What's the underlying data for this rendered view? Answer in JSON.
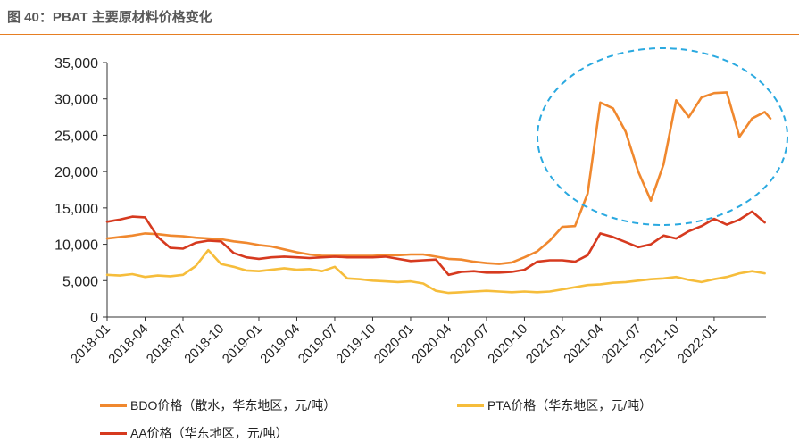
{
  "figure": {
    "title": "图 40：PBAT 主要原材料价格变化"
  },
  "colors": {
    "bdo": "#F0882E",
    "pta": "#F6BD3B",
    "aa": "#D63A1F",
    "axis": "#333333",
    "ellipse": "#2AA9E0",
    "rule": "#E67E22"
  },
  "chart_data": {
    "type": "line",
    "y_ticks": [
      "0",
      "5,000",
      "10,000",
      "15,000",
      "20,000",
      "25,000",
      "30,000",
      "35,000"
    ],
    "ylim": [
      0,
      35000
    ],
    "x_ticks": [
      "2018-01",
      "2018-04",
      "2018-07",
      "2018-10",
      "2019-01",
      "2019-04",
      "2019-07",
      "2019-10",
      "2020-01",
      "2020-04",
      "2020-07",
      "2020-10",
      "2021-01",
      "2021-04",
      "2021-07",
      "2021-10",
      "2022-01"
    ],
    "x_start": "2018-01",
    "x_end": "2022-04",
    "grid": false,
    "legend_position": "bottom",
    "series": [
      {
        "name": "BDO价格（散水，华东地区，元/吨）",
        "key": "bdo",
        "points": [
          [
            "2018-01",
            10800
          ],
          [
            "2018-02",
            11000
          ],
          [
            "2018-03",
            11200
          ],
          [
            "2018-04",
            11500
          ],
          [
            "2018-05",
            11400
          ],
          [
            "2018-06",
            11200
          ],
          [
            "2018-07",
            11100
          ],
          [
            "2018-08",
            10900
          ],
          [
            "2018-09",
            10800
          ],
          [
            "2018-10",
            10700
          ],
          [
            "2018-11",
            10400
          ],
          [
            "2018-12",
            10200
          ],
          [
            "2019-01",
            9900
          ],
          [
            "2019-02",
            9700
          ],
          [
            "2019-03",
            9300
          ],
          [
            "2019-04",
            8900
          ],
          [
            "2019-05",
            8600
          ],
          [
            "2019-06",
            8400
          ],
          [
            "2019-07",
            8400
          ],
          [
            "2019-08",
            8400
          ],
          [
            "2019-09",
            8400
          ],
          [
            "2019-10",
            8400
          ],
          [
            "2019-11",
            8500
          ],
          [
            "2019-12",
            8500
          ],
          [
            "2020-01",
            8600
          ],
          [
            "2020-02",
            8600
          ],
          [
            "2020-03",
            8300
          ],
          [
            "2020-04",
            8000
          ],
          [
            "2020-05",
            7900
          ],
          [
            "2020-06",
            7600
          ],
          [
            "2020-07",
            7400
          ],
          [
            "2020-08",
            7300
          ],
          [
            "2020-09",
            7500
          ],
          [
            "2020-10",
            8200
          ],
          [
            "2020-11",
            9000
          ],
          [
            "2020-12",
            10500
          ],
          [
            "2021-01",
            12400
          ],
          [
            "2021-02",
            12500
          ],
          [
            "2021-03",
            17000
          ],
          [
            "2021-04",
            29500
          ],
          [
            "2021-05",
            28700
          ],
          [
            "2021-06",
            25500
          ],
          [
            "2021-07",
            20000
          ],
          [
            "2021-08",
            16000
          ],
          [
            "2021-09",
            21000
          ],
          [
            "2021-10",
            29800
          ],
          [
            "2021-11",
            27500
          ],
          [
            "2021-12",
            30200
          ],
          [
            "2022-01",
            30800
          ],
          [
            "2022-02",
            30900
          ],
          [
            "2022-03",
            24800
          ],
          [
            "2022-04",
            27300
          ],
          [
            "2022-05",
            28200
          ],
          [
            "2022-05",
            27300
          ]
        ]
      },
      {
        "name": "PTA价格（华东地区，元/吨）",
        "key": "pta",
        "points": [
          [
            "2018-01",
            5800
          ],
          [
            "2018-02",
            5700
          ],
          [
            "2018-03",
            5900
          ],
          [
            "2018-04",
            5500
          ],
          [
            "2018-05",
            5700
          ],
          [
            "2018-06",
            5600
          ],
          [
            "2018-07",
            5800
          ],
          [
            "2018-08",
            7000
          ],
          [
            "2018-09",
            9200
          ],
          [
            "2018-10",
            7300
          ],
          [
            "2018-11",
            6900
          ],
          [
            "2018-12",
            6400
          ],
          [
            "2019-01",
            6300
          ],
          [
            "2019-02",
            6500
          ],
          [
            "2019-03",
            6700
          ],
          [
            "2019-04",
            6500
          ],
          [
            "2019-05",
            6600
          ],
          [
            "2019-06",
            6300
          ],
          [
            "2019-07",
            6900
          ],
          [
            "2019-08",
            5300
          ],
          [
            "2019-09",
            5200
          ],
          [
            "2019-10",
            5000
          ],
          [
            "2019-11",
            4900
          ],
          [
            "2019-12",
            4800
          ],
          [
            "2020-01",
            4900
          ],
          [
            "2020-02",
            4600
          ],
          [
            "2020-03",
            3600
          ],
          [
            "2020-04",
            3300
          ],
          [
            "2020-05",
            3400
          ],
          [
            "2020-06",
            3500
          ],
          [
            "2020-07",
            3600
          ],
          [
            "2020-08",
            3500
          ],
          [
            "2020-09",
            3400
          ],
          [
            "2020-10",
            3500
          ],
          [
            "2020-11",
            3400
          ],
          [
            "2020-12",
            3500
          ],
          [
            "2021-01",
            3800
          ],
          [
            "2021-02",
            4100
          ],
          [
            "2021-03",
            4400
          ],
          [
            "2021-04",
            4500
          ],
          [
            "2021-05",
            4700
          ],
          [
            "2021-06",
            4800
          ],
          [
            "2021-07",
            5000
          ],
          [
            "2021-08",
            5200
          ],
          [
            "2021-09",
            5300
          ],
          [
            "2021-10",
            5500
          ],
          [
            "2021-11",
            5100
          ],
          [
            "2021-12",
            4800
          ],
          [
            "2022-01",
            5200
          ],
          [
            "2022-02",
            5500
          ],
          [
            "2022-03",
            6000
          ],
          [
            "2022-04",
            6300
          ],
          [
            "2022-05",
            6000
          ]
        ]
      },
      {
        "name": "AA价格（华东地区，元/吨）",
        "key": "aa",
        "points": [
          [
            "2018-01",
            13100
          ],
          [
            "2018-02",
            13400
          ],
          [
            "2018-03",
            13800
          ],
          [
            "2018-04",
            13700
          ],
          [
            "2018-05",
            11000
          ],
          [
            "2018-06",
            9500
          ],
          [
            "2018-07",
            9400
          ],
          [
            "2018-08",
            10200
          ],
          [
            "2018-09",
            10500
          ],
          [
            "2018-10",
            10400
          ],
          [
            "2018-11",
            8800
          ],
          [
            "2018-12",
            8200
          ],
          [
            "2019-01",
            8000
          ],
          [
            "2019-02",
            8200
          ],
          [
            "2019-03",
            8300
          ],
          [
            "2019-04",
            8200
          ],
          [
            "2019-05",
            8100
          ],
          [
            "2019-06",
            8200
          ],
          [
            "2019-07",
            8300
          ],
          [
            "2019-08",
            8200
          ],
          [
            "2019-09",
            8200
          ],
          [
            "2019-10",
            8200
          ],
          [
            "2019-11",
            8300
          ],
          [
            "2019-12",
            8000
          ],
          [
            "2020-01",
            7700
          ],
          [
            "2020-02",
            7800
          ],
          [
            "2020-03",
            7900
          ],
          [
            "2020-04",
            5800
          ],
          [
            "2020-05",
            6200
          ],
          [
            "2020-06",
            6300
          ],
          [
            "2020-07",
            6100
          ],
          [
            "2020-08",
            6100
          ],
          [
            "2020-09",
            6200
          ],
          [
            "2020-10",
            6500
          ],
          [
            "2020-11",
            7600
          ],
          [
            "2020-12",
            7800
          ],
          [
            "2021-01",
            7800
          ],
          [
            "2021-02",
            7600
          ],
          [
            "2021-03",
            8500
          ],
          [
            "2021-04",
            11500
          ],
          [
            "2021-05",
            11000
          ],
          [
            "2021-06",
            10300
          ],
          [
            "2021-07",
            9600
          ],
          [
            "2021-08",
            10000
          ],
          [
            "2021-09",
            11200
          ],
          [
            "2021-10",
            10800
          ],
          [
            "2021-11",
            11800
          ],
          [
            "2021-12",
            12500
          ],
          [
            "2022-01",
            13500
          ],
          [
            "2022-02",
            12700
          ],
          [
            "2022-03",
            13400
          ],
          [
            "2022-04",
            14500
          ],
          [
            "2022-05",
            13000
          ]
        ]
      }
    ]
  }
}
